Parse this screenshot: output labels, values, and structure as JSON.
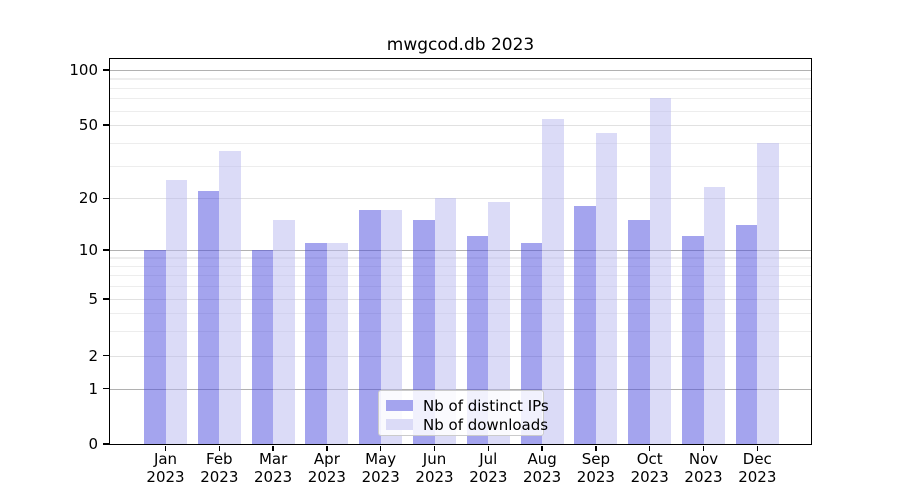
{
  "chart_data": {
    "type": "bar",
    "title": "mwgcod.db 2023",
    "categories": [
      "Jan",
      "Feb",
      "Mar",
      "Apr",
      "May",
      "Jun",
      "Jul",
      "Aug",
      "Sep",
      "Oct",
      "Nov",
      "Dec"
    ],
    "category_year": "2023",
    "series": [
      {
        "name": "Nb of distinct IPs",
        "values": [
          10,
          22,
          10,
          11,
          17,
          15,
          12,
          11,
          18,
          15,
          12,
          14
        ],
        "bar_color": "rgba(73,73,221,0.5)",
        "swatch_color": "#a4a4ee"
      },
      {
        "name": "Nb of downloads",
        "values": [
          25,
          36,
          15,
          11,
          17,
          20,
          19,
          54,
          45,
          70,
          23,
          40
        ],
        "bar_color": "rgba(183,183,239,0.5)",
        "swatch_color": "#dbdbf7"
      }
    ],
    "yticks": [
      0,
      1,
      2,
      5,
      10,
      20,
      50,
      100
    ],
    "yticks_minor": [
      3,
      4,
      6,
      7,
      8,
      9,
      30,
      40,
      60,
      70,
      80,
      90
    ],
    "yticks_major_emphasis": [
      1,
      10,
      100
    ],
    "ylim": [
      0,
      115
    ],
    "yscale": "symlog",
    "grid": "horizontal",
    "legend_position": "bottom-center"
  }
}
